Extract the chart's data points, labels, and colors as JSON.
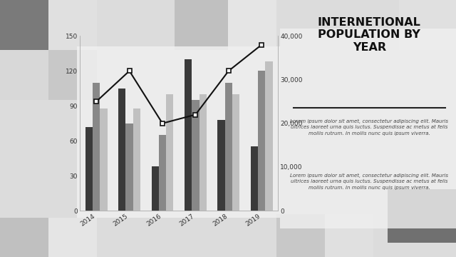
{
  "years": [
    "2014",
    "2015",
    "2016",
    "2017",
    "2018",
    "2019"
  ],
  "US": [
    72,
    105,
    38,
    130,
    78,
    55
  ],
  "UK": [
    110,
    75,
    65,
    95,
    110,
    120
  ],
  "Mexico": [
    88,
    88,
    100,
    100,
    100,
    128
  ],
  "China": [
    25000,
    32000,
    20000,
    22000,
    32000,
    38000
  ],
  "bar_colors": {
    "US": "#3a3a3a",
    "UK": "#888888",
    "Mexico": "#c0c0c0"
  },
  "line_color": "#111111",
  "title": "INTERNETIONAL\nPOPULATION BY\nYEAR",
  "lorem_text": "Lorem ipsum dolor sit amet, consectetur adipiscing elit. Mauris\nultrices laoreet urna quis luctus. Suspendisse ac metus at felis\nmollis rutrum. In mollis nunc quis ipsum viverra.",
  "left_ylim": [
    0,
    150
  ],
  "right_ylim": [
    0,
    40000
  ],
  "left_yticks": [
    0,
    30,
    60,
    90,
    120,
    150
  ],
  "right_yticks": [
    0,
    10000,
    20000,
    30000,
    40000
  ],
  "right_ytick_labels": [
    "0",
    "10,000",
    "20,000",
    "30,000",
    "40,000"
  ]
}
